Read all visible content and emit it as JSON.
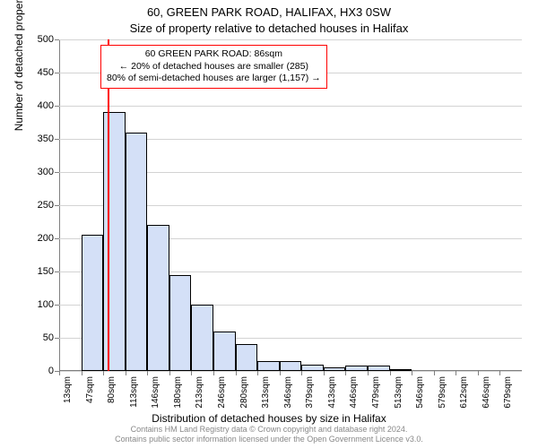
{
  "titles": {
    "line1": "60, GREEN PARK ROAD, HALIFAX, HX3 0SW",
    "line2": "Size of property relative to detached houses in Halifax"
  },
  "axes": {
    "ylabel": "Number of detached properties",
    "xlabel": "Distribution of detached houses by size in Halifax",
    "ylim": [
      0,
      500
    ],
    "yticks": [
      0,
      50,
      100,
      150,
      200,
      250,
      300,
      350,
      400,
      450,
      500
    ],
    "xlim_index": [
      0,
      21
    ],
    "xtick_labels": [
      "13sqm",
      "47sqm",
      "80sqm",
      "113sqm",
      "146sqm",
      "180sqm",
      "213sqm",
      "246sqm",
      "280sqm",
      "313sqm",
      "346sqm",
      "379sqm",
      "413sqm",
      "446sqm",
      "479sqm",
      "513sqm",
      "546sqm",
      "579sqm",
      "612sqm",
      "646sqm",
      "679sqm"
    ],
    "grid_color": "#d3d3d3",
    "background_color": "#ffffff"
  },
  "histogram": {
    "type": "histogram",
    "values": [
      0,
      205,
      390,
      360,
      220,
      145,
      100,
      60,
      40,
      15,
      15,
      10,
      5,
      8,
      8,
      3,
      0,
      0,
      0,
      0,
      0
    ],
    "bar_fill": "#d4e0f7",
    "bar_border": "#000000",
    "bar_width_ratio": 1.0
  },
  "reference": {
    "value_sqm": 86,
    "line_color": "#ff0000"
  },
  "annotation": {
    "line1": "60 GREEN PARK ROAD: 86sqm",
    "line2": "← 20% of detached houses are smaller (285)",
    "line3": "80% of semi-detached houses are larger (1,157) →",
    "border_color": "#ff0000"
  },
  "footer": {
    "line1": "Contains HM Land Registry data © Crown copyright and database right 2024.",
    "line2": "Contains public sector information licensed under the Open Government Licence v3.0."
  }
}
